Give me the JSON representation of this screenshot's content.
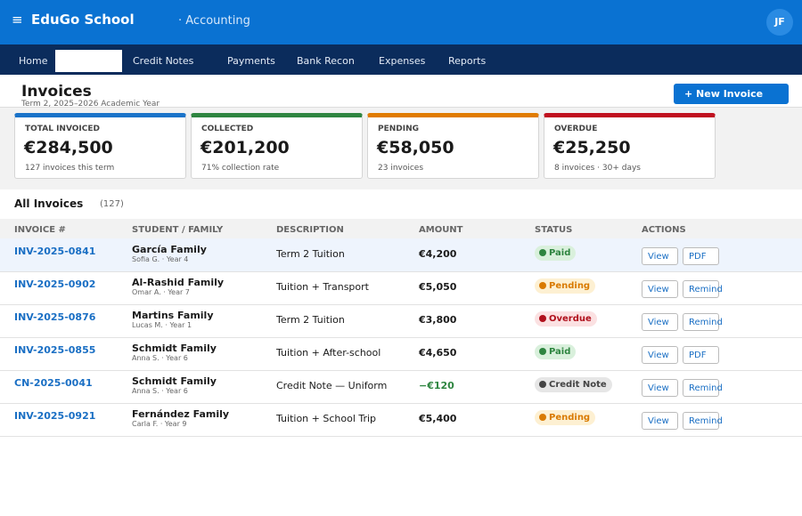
{
  "topbar": {
    "menu_icon": "≡",
    "app_name": "EduGo School",
    "module": "· Accounting",
    "avatar": "JF"
  },
  "nav": {
    "items": [
      "Home",
      "Credit Notes",
      "Payments",
      "Bank Recon",
      "Expenses",
      "Reports"
    ]
  },
  "header": {
    "title": "Invoices",
    "subtitle": "Term 2, 2025–2026 Academic Year",
    "button": "+ New Invoice"
  },
  "cards": [
    {
      "label": "TOTAL INVOICED",
      "value": "€284,500",
      "note": "127 invoices this term",
      "color": "#1a73c9"
    },
    {
      "label": "COLLECTED",
      "value": "€201,200",
      "note": "71% collection rate",
      "color": "#2e8540"
    },
    {
      "label": "PENDING",
      "value": "€58,050",
      "note": "23 invoices",
      "color": "#e07b00"
    },
    {
      "label": "OVERDUE",
      "value": "€25,250",
      "note": "8 invoices · 30+ days",
      "color": "#c0101f"
    }
  ],
  "table": {
    "heading": "All Invoices",
    "count": "(127)",
    "columns": [
      "INVOICE #",
      "STUDENT / FAMILY",
      "DESCRIPTION",
      "AMOUNT",
      "STATUS",
      "ACTIONS"
    ],
    "rows": [
      {
        "invoice": "INV-2025-0841",
        "family": "García Family",
        "student": "Sofia G. · Year 4",
        "description": "Term 2 Tuition",
        "amount": "€4,200",
        "status": "Paid",
        "status_color": "#2e8540",
        "status_bg": "#d9f0dc",
        "actions": [
          "View",
          "PDF"
        ]
      },
      {
        "invoice": "INV-2025-0902",
        "family": "Al-Rashid Family",
        "student": "Omar A. · Year 7",
        "description": "Tuition + Transport",
        "amount": "€5,050",
        "status": "Pending",
        "status_color": "#d97a00",
        "status_bg": "#fdf0d2",
        "actions": [
          "View",
          "Remind"
        ]
      },
      {
        "invoice": "INV-2025-0876",
        "family": "Martins Family",
        "student": "Lucas M. · Year 1",
        "description": "Term 2 Tuition",
        "amount": "€3,800",
        "status": "Overdue",
        "status_color": "#b0101c",
        "status_bg": "#fbe1e2",
        "actions": [
          "View",
          "Remind"
        ]
      },
      {
        "invoice": "INV-2025-0855",
        "family": "Schmidt Family",
        "student": "Anna S. · Year 6",
        "description": "Tuition + After-school",
        "amount": "€4,650",
        "status": "Paid",
        "status_color": "#2e8540",
        "status_bg": "#d9f0dc",
        "actions": [
          "View",
          "PDF"
        ]
      },
      {
        "invoice": "CN-2025-0041",
        "family": "Schmidt Family",
        "student": "Anna S. · Year 6",
        "description": "Credit Note — Uniform",
        "amount": "−€120",
        "amount_color": "#2e8540",
        "status": "Credit Note",
        "status_color": "#444444",
        "status_bg": "#e6e6e6",
        "actions": [
          "View",
          "Remind"
        ]
      },
      {
        "invoice": "INV-2025-0921",
        "family": "Fernández Family",
        "student": "Carla F. · Year 9",
        "description": "Tuition + School Trip",
        "amount": "€5,400",
        "status": "Pending",
        "status_color": "#d97a00",
        "status_bg": "#fdf0d2",
        "actions": [
          "View",
          "Remind"
        ]
      }
    ]
  }
}
